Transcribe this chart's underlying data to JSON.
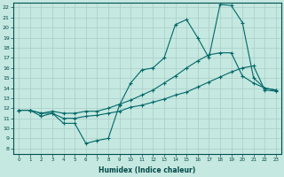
{
  "title": "",
  "xlabel": "Humidex (Indice chaleur)",
  "ylabel": "",
  "background_color": "#c5e8e0",
  "grid_color": "#a8cec8",
  "line_color": "#006868",
  "xlim": [
    -0.5,
    23.5
  ],
  "ylim": [
    7.5,
    22.5
  ],
  "yticks": [
    8,
    9,
    10,
    11,
    12,
    13,
    14,
    15,
    16,
    17,
    18,
    19,
    20,
    21,
    22
  ],
  "xticks": [
    0,
    1,
    2,
    3,
    4,
    5,
    6,
    7,
    8,
    9,
    10,
    11,
    12,
    13,
    14,
    15,
    16,
    17,
    18,
    19,
    20,
    21,
    22,
    23
  ],
  "line1_x": [
    0,
    1,
    2,
    3,
    4,
    5,
    6,
    7,
    8,
    9,
    10,
    11,
    12,
    13,
    14,
    15,
    16,
    17,
    18,
    19,
    20,
    21,
    22,
    23
  ],
  "line1_y": [
    11.8,
    11.8,
    11.2,
    11.5,
    10.5,
    10.5,
    8.5,
    8.8,
    9.0,
    12.3,
    14.5,
    15.8,
    16.0,
    17.0,
    20.3,
    20.8,
    19.0,
    17.0,
    22.3,
    22.2,
    20.5,
    15.0,
    14.0,
    13.8
  ],
  "line2_x": [
    0,
    1,
    2,
    3,
    4,
    5,
    6,
    7,
    8,
    9,
    10,
    11,
    12,
    13,
    14,
    15,
    16,
    17,
    18,
    19,
    20,
    21,
    22,
    23
  ],
  "line2_y": [
    11.8,
    11.8,
    11.5,
    11.7,
    11.5,
    11.5,
    11.7,
    11.7,
    12.0,
    12.4,
    12.8,
    13.3,
    13.8,
    14.5,
    15.2,
    16.0,
    16.7,
    17.3,
    17.5,
    17.5,
    15.2,
    14.5,
    14.0,
    13.8
  ],
  "line3_x": [
    0,
    1,
    2,
    3,
    4,
    5,
    6,
    7,
    8,
    9,
    10,
    11,
    12,
    13,
    14,
    15,
    16,
    17,
    18,
    19,
    20,
    21,
    22,
    23
  ],
  "line3_y": [
    11.8,
    11.8,
    11.5,
    11.5,
    11.0,
    11.0,
    11.2,
    11.3,
    11.5,
    11.7,
    12.1,
    12.3,
    12.6,
    12.9,
    13.3,
    13.6,
    14.1,
    14.6,
    15.1,
    15.6,
    16.0,
    16.2,
    13.8,
    13.7
  ]
}
